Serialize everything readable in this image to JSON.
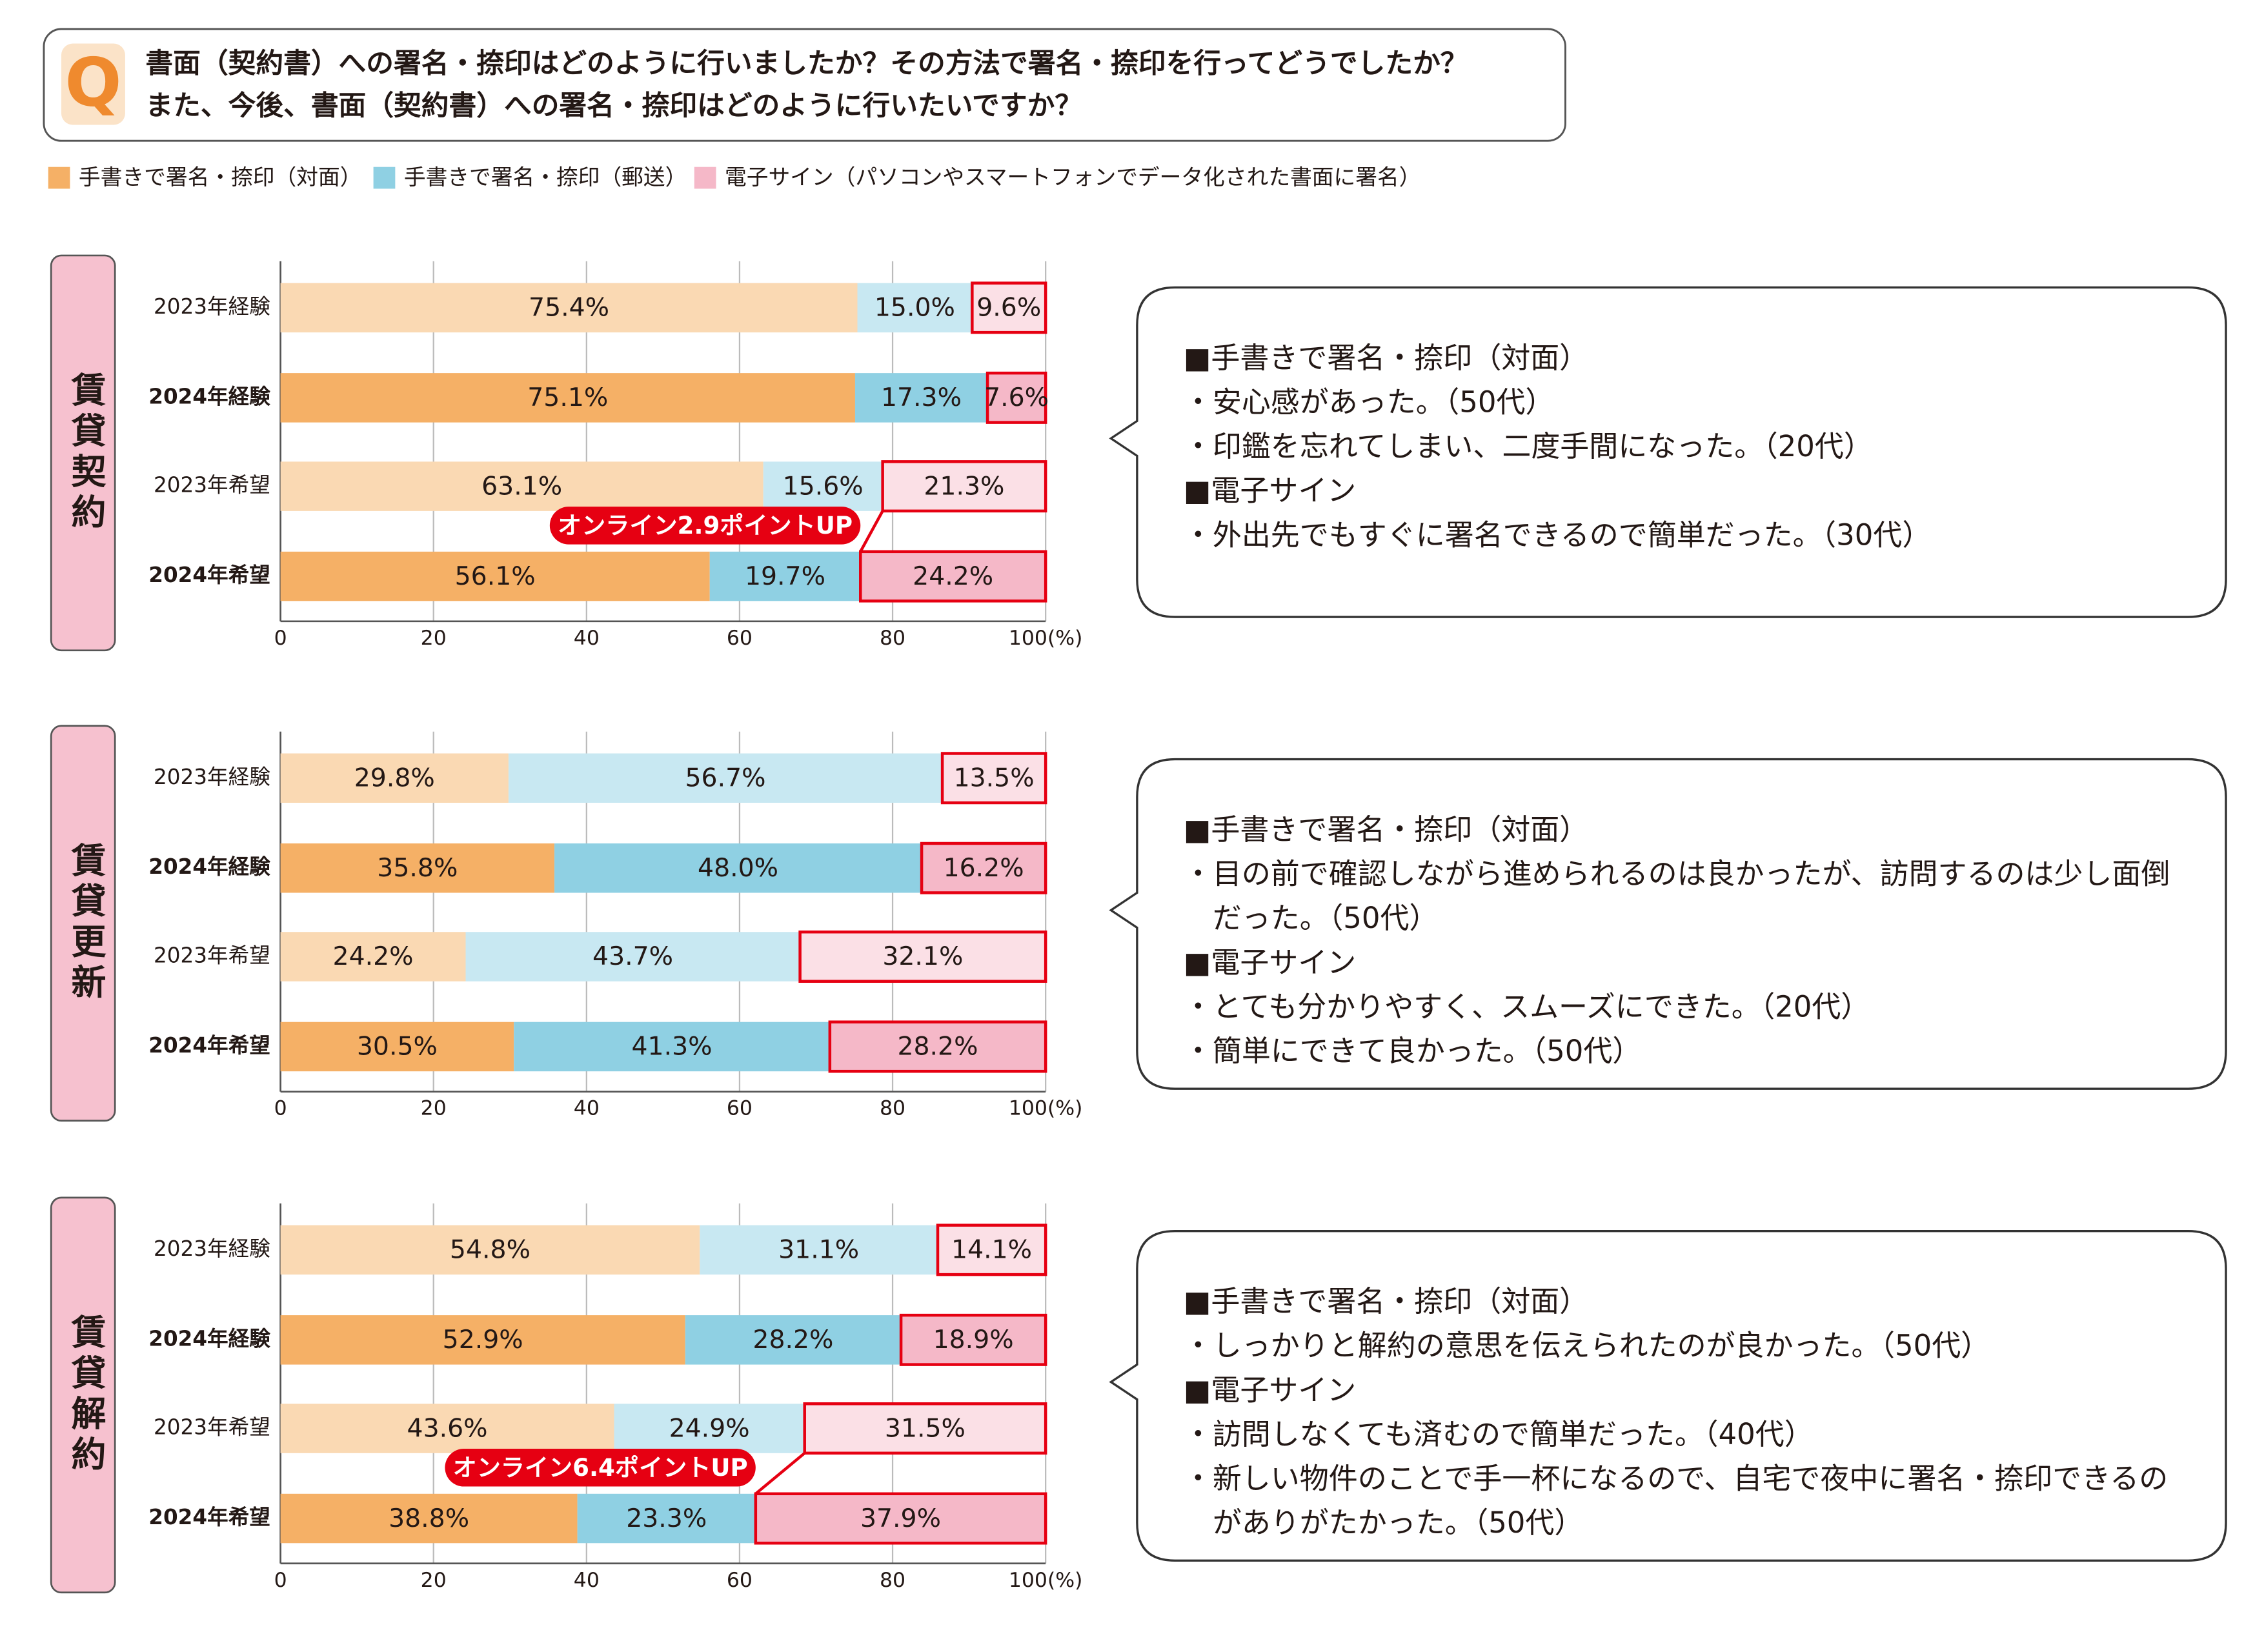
{
  "question": {
    "lines": [
      "書面（契約書）への署名・捺印はどのように行いましたか？その方法で署名・捺印を行ってどうでしたか？",
      "また、今後、書面（契約書）への署名・捺印はどのように行いたいですか？"
    ]
  },
  "chart_data": [
    {
      "type": "stacked-bar",
      "title": "賃貸契約",
      "categories": [
        "2023年経験",
        "2024年経験",
        "2023年希望",
        "2024年希望"
      ],
      "series": [
        {
          "name": "手書きで署名・捺印（対面）",
          "colors": [
            "#fad9b3",
            "#f5b066",
            "#fad9b3",
            "#f5b066"
          ],
          "values": [
            75.4,
            75.1,
            63.1,
            56.1
          ],
          "value_labels": [
            "75.4%",
            "75.1%",
            "63.1%",
            "56.1%"
          ]
        },
        {
          "name": "手書きで署名・捺印（郵送）",
          "colors": [
            "#c8e8f2",
            "#8fd0e3",
            "#c8e8f2",
            "#8fd0e3"
          ],
          "values": [
            15.0,
            17.3,
            15.6,
            19.7
          ],
          "value_labels": [
            "15.0%",
            "17.3%",
            "15.6%",
            "19.7%"
          ]
        },
        {
          "name": "電子サイン（パソコンやスマートフォンでデータ化された書面に署名）",
          "colors": [
            "#fbe0e6",
            "#f5b8c8",
            "#fbe0e6",
            "#f5b8c8"
          ],
          "outline_color": "#e60012",
          "values": [
            9.6,
            7.6,
            21.3,
            24.2
          ],
          "value_labels": [
            "9.6%",
            "7.6%",
            "21.3%",
            "24.2%"
          ]
        }
      ],
      "annotation": "オンライン2.9ポイントUP",
      "xlim": [
        0,
        100
      ],
      "xticks": [
        0,
        20,
        40,
        60,
        80,
        {
          "value": 100,
          "label": "100(%)"
        }
      ]
    },
    {
      "type": "stacked-bar",
      "title": "賃貸更新",
      "categories": [
        "2023年経験",
        "2024年経験",
        "2023年希望",
        "2024年希望"
      ],
      "series": [
        {
          "colors": [
            "#fad9b3",
            "#f5b066",
            "#fad9b3",
            "#f5b066"
          ],
          "values": [
            29.8,
            35.8,
            24.2,
            30.5
          ],
          "value_labels": [
            "29.8%",
            "35.8%",
            "24.2%",
            "30.5%"
          ]
        },
        {
          "colors": [
            "#c8e8f2",
            "#8fd0e3",
            "#c8e8f2",
            "#8fd0e3"
          ],
          "values": [
            56.7,
            48.0,
            43.7,
            41.3
          ],
          "value_labels": [
            "56.7%",
            "48.0%",
            "43.7%",
            "41.3%"
          ]
        },
        {
          "colors": [
            "#fbe0e6",
            "#f5b8c8",
            "#fbe0e6",
            "#f5b8c8"
          ],
          "outline_color": "#e60012",
          "values": [
            13.5,
            16.2,
            32.1,
            28.2
          ],
          "value_labels": [
            "13.5%",
            "16.2%",
            "32.1%",
            "28.2%"
          ]
        }
      ],
      "xlim": [
        0,
        100
      ],
      "xticks": [
        0,
        20,
        40,
        60,
        80,
        {
          "value": 100,
          "label": "100(%)"
        }
      ]
    },
    {
      "type": "stacked-bar",
      "title": "賃貸解約",
      "categories": [
        "2023年経験",
        "2024年経験",
        "2023年希望",
        "2024年希望"
      ],
      "series": [
        {
          "colors": [
            "#fad9b3",
            "#f5b066",
            "#fad9b3",
            "#f5b066"
          ],
          "values": [
            54.8,
            52.9,
            43.6,
            38.8
          ],
          "value_labels": [
            "54.8%",
            "52.9%",
            "43.6%",
            "38.8%"
          ]
        },
        {
          "colors": [
            "#c8e8f2",
            "#8fd0e3",
            "#c8e8f2",
            "#8fd0e3"
          ],
          "values": [
            31.1,
            28.2,
            24.9,
            23.3
          ],
          "value_labels": [
            "31.1%",
            "28.2%",
            "24.9%",
            "23.3%"
          ]
        },
        {
          "colors": [
            "#fbe0e6",
            "#f5b8c8",
            "#fbe0e6",
            "#f5b8c8"
          ],
          "outline_color": "#e60012",
          "values": [
            14.1,
            18.9,
            31.5,
            37.9
          ],
          "value_labels": [
            "14.1%",
            "18.9%",
            "31.5%",
            "37.9%"
          ]
        }
      ],
      "annotation": "オンライン6.4ポイントUP",
      "xlim": [
        0,
        100
      ],
      "xticks": [
        0,
        20,
        40,
        60,
        80,
        {
          "value": 100,
          "label": "100(%)"
        }
      ]
    }
  ],
  "comments": [
    [
      "■手書きで署名・捺印（対面）",
      "・安心感があった。（50代）",
      "・印鑑を忘れてしまい、二度手間になった。（20代）",
      "■電子サイン",
      "・外出先でもすぐに署名できるので簡単だった。（30代）"
    ],
    [
      "■手書きで署名・捺印（対面）",
      "・目の前で確認しながら進められるのは良かったが、訪問するのは少し面倒",
      "だった。（50代）",
      "■電子サイン",
      "・とても分かりやすく、スムーズにできた。（20代）",
      "・簡単にできて良かった。（50代）"
    ],
    [
      "■手書きで署名・捺印（対面）",
      "・しっかりと解約の意思を伝えられたのが良かった。（50代）",
      "■電子サイン",
      "・訪問しなくても済むので簡単だった。（40代）",
      "・新しい物件のことで手一杯になるので、自宅で夜中に署名・捺印できるの",
      "がありがたかった。（50代）"
    ]
  ]
}
